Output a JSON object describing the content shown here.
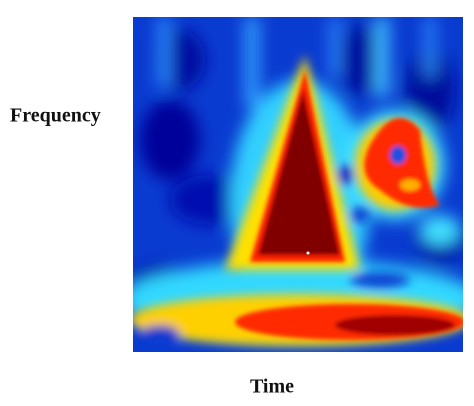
{
  "chart_data": {
    "type": "heatmap",
    "xlabel": "Time",
    "ylabel": "Frequency"
  }
}
